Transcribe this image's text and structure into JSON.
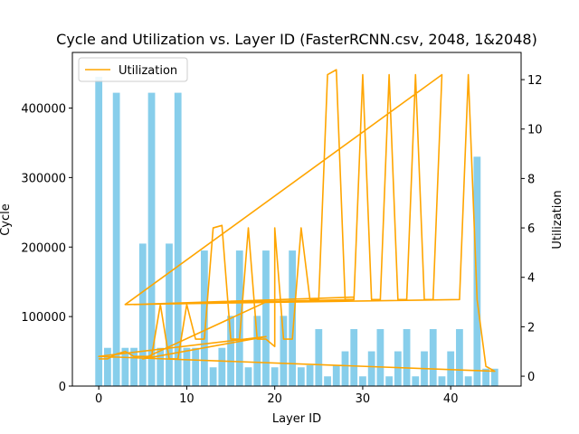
{
  "chart_data": {
    "type": "bar+line",
    "title": "Cycle and Utilization vs. Layer ID (FasterRCNN.csv, 2048, 1&2048)",
    "xlabel": "Layer ID",
    "ylabel_left": "Cycle",
    "ylabel_right": "Utilization",
    "xlim": [
      -3,
      48
    ],
    "ylim_left": [
      0,
      480000
    ],
    "ylim_right": [
      -0.4,
      13.1
    ],
    "x_ticks": [
      0,
      10,
      20,
      30,
      40
    ],
    "y_left_ticks": [
      0,
      100000,
      200000,
      300000,
      400000
    ],
    "y_right_ticks": [
      0,
      2,
      4,
      6,
      8,
      10,
      12
    ],
    "legend_position": "upper-left",
    "bar_color": "#87ceeb",
    "line_color": "#ffa500",
    "cycle_series": {
      "name": "Cycle",
      "x": [
        0,
        1,
        2,
        3,
        4,
        5,
        6,
        7,
        8,
        9,
        10,
        11,
        12,
        13,
        14,
        15,
        16,
        17,
        18,
        19,
        20,
        21,
        22,
        23,
        24,
        25,
        26,
        27,
        28,
        29,
        30,
        31,
        32,
        33,
        34,
        35,
        36,
        37,
        38,
        39,
        40,
        41,
        42,
        43,
        44,
        45
      ],
      "values": [
        445000,
        55000,
        422000,
        55000,
        55000,
        205000,
        422000,
        55000,
        205000,
        422000,
        55000,
        55000,
        195000,
        27000,
        55000,
        101000,
        195000,
        27000,
        101000,
        195000,
        27000,
        101000,
        195000,
        27000,
        30000,
        82000,
        14000,
        30000,
        50000,
        82000,
        14000,
        50000,
        82000,
        14000,
        50000,
        82000,
        14000,
        50000,
        82000,
        14000,
        50000,
        82000,
        14000,
        330000,
        25000,
        25000
      ]
    },
    "utilization_series": {
      "name": "Utilization",
      "points": [
        [
          0,
          0.7
        ],
        [
          1,
          0.7
        ],
        [
          2,
          0.9
        ],
        [
          3,
          1.0
        ],
        [
          4,
          0.8
        ],
        [
          5,
          0.8
        ],
        [
          6,
          0.8
        ],
        [
          7,
          2.9
        ],
        [
          8,
          0.7
        ],
        [
          9,
          0.7
        ],
        [
          10,
          2.9
        ],
        [
          11,
          1.5
        ],
        [
          12,
          1.5
        ],
        [
          13,
          6.0
        ],
        [
          14,
          6.1
        ],
        [
          15,
          1.5
        ],
        [
          16,
          1.5
        ],
        [
          17,
          6.0
        ],
        [
          18,
          1.5
        ],
        [
          19,
          1.5
        ],
        [
          20,
          1.2
        ],
        [
          20,
          6.0
        ],
        [
          21,
          1.5
        ],
        [
          22,
          1.5
        ],
        [
          23,
          6.0
        ],
        [
          24,
          3.1
        ],
        [
          25,
          3.1
        ],
        [
          26,
          12.2
        ],
        [
          27,
          12.4
        ],
        [
          28,
          3.1
        ],
        [
          29,
          3.1
        ],
        [
          30,
          12.2
        ],
        [
          31,
          3.1
        ],
        [
          32,
          3.1
        ],
        [
          33,
          12.2
        ],
        [
          34,
          3.1
        ],
        [
          35,
          3.1
        ],
        [
          36,
          12.2
        ],
        [
          37,
          3.1
        ],
        [
          38,
          3.1
        ],
        [
          39,
          12.2
        ],
        [
          3,
          2.9
        ],
        [
          41,
          3.1
        ],
        [
          42,
          12.2
        ],
        [
          43,
          3.1
        ],
        [
          44,
          0.4
        ],
        [
          45,
          0.2
        ],
        [
          0,
          0.8
        ],
        [
          19,
          1.6
        ],
        [
          5,
          0.7
        ],
        [
          19,
          3.0
        ],
        [
          29,
          3.1
        ],
        [
          4,
          2.9
        ],
        [
          29,
          3.2
        ]
      ]
    }
  },
  "legend": {
    "label": "Utilization"
  }
}
